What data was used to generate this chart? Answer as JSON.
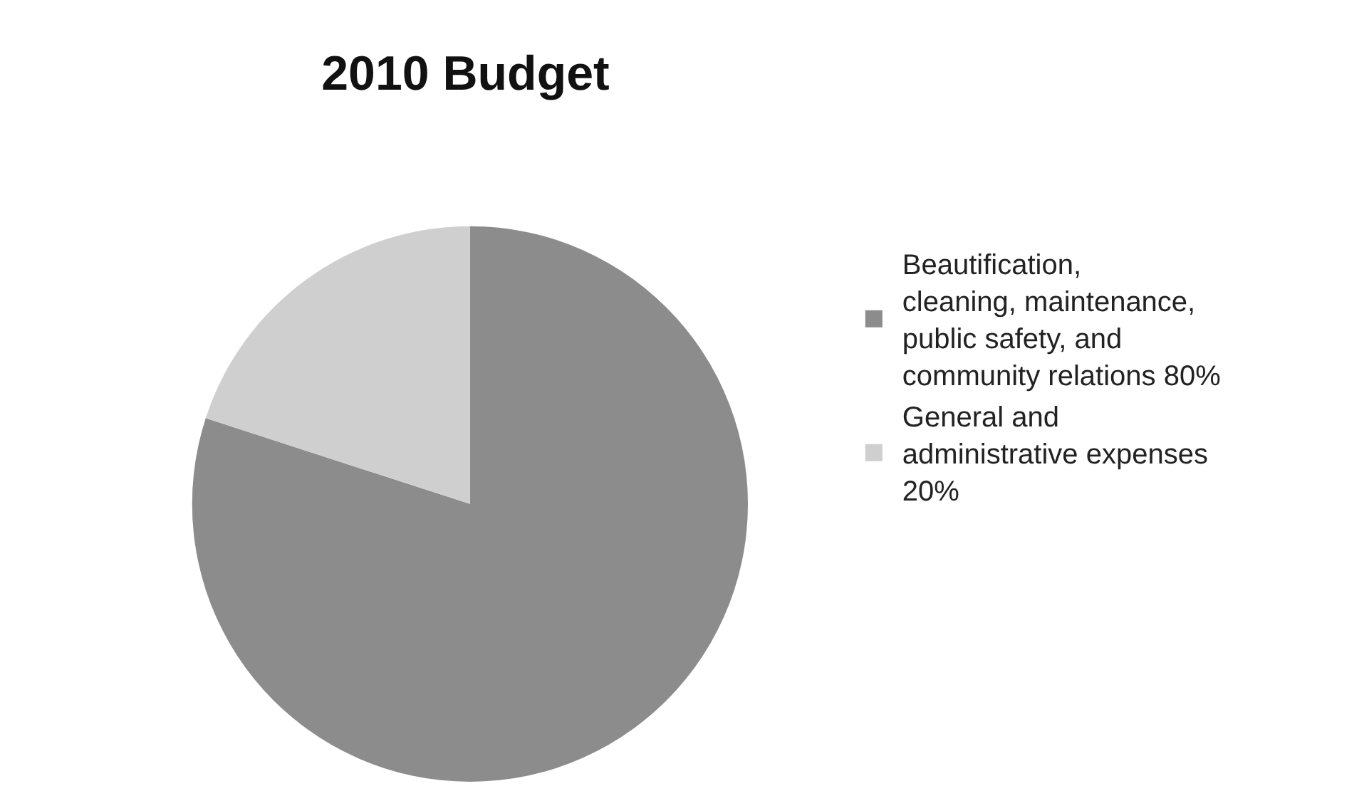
{
  "chart_data": {
    "type": "pie",
    "title": "2010 Budget",
    "categories": [
      "Beautification, cleaning, maintenance, public safety, and community relations 80%",
      "General and administrative expenses 20%"
    ],
    "values": [
      80,
      20
    ],
    "colors": [
      "#8c8c8c",
      "#cfcfcf"
    ],
    "legend": "right"
  }
}
